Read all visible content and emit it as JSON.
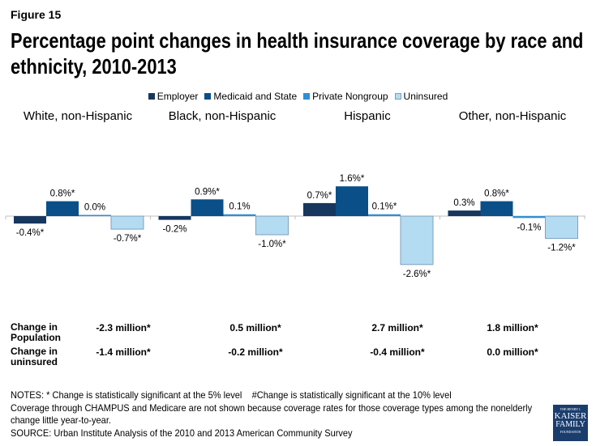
{
  "figure_label": "Figure 15",
  "chart_data": {
    "type": "bar",
    "title": "Percentage point changes in health insurance coverage by race and ethnicity, 2010-2013",
    "categories": [
      "White, non-Hispanic",
      "Black, non-Hispanic",
      "Hispanic",
      "Other, non-Hispanic"
    ],
    "series": [
      {
        "name": "Employer",
        "color": "#17375e",
        "values": [
          -0.4,
          -0.2,
          0.7,
          0.3
        ],
        "labels": [
          "-0.4%*",
          "-0.2%",
          "0.7%*",
          "0.3%"
        ]
      },
      {
        "name": "Medicaid and State",
        "color": "#0a4f88",
        "values": [
          0.8,
          0.9,
          1.6,
          0.8
        ],
        "labels": [
          "0.8%*",
          "0.9%*",
          "1.6%*",
          "0.8%*"
        ]
      },
      {
        "name": "Private Nongroup",
        "color": "#2e8fd6",
        "values": [
          0.0,
          0.1,
          0.1,
          -0.1
        ],
        "labels": [
          "0.0%",
          "0.1%",
          "0.1%*",
          "-0.1%"
        ]
      },
      {
        "name": "Uninsured",
        "color": "#b3dcf2",
        "values": [
          -0.7,
          -1.0,
          -2.6,
          -1.2
        ],
        "labels": [
          "-0.7%*",
          "-1.0%*",
          "-2.6%*",
          "-1.2%*"
        ]
      }
    ],
    "legend": "top",
    "grid": false
  },
  "table": {
    "row1_label": "Change in Population",
    "row1": [
      "-2.3 million*",
      "0.5 million*",
      "2.7 million*",
      "1.8  million*"
    ],
    "row2_label": "Change in uninsured",
    "row2": [
      "-1.4 million*",
      "-0.2 million*",
      "-0.4 million*",
      "0.0 million*"
    ]
  },
  "notes": [
    "NOTES: * Change is statistically significant at the 5% level    #Change is statistically significant at the 10% level",
    "Coverage through CHAMPUS and Medicare are not shown because coverage rates for those coverage types among the nonelderly",
    "change little year-to-year.",
    "SOURCE: Urban Institute Analysis of the 2010 and 2013 American Community Survey"
  ],
  "logo": {
    "line1": "THE HENRY J.",
    "line2": "KAISER",
    "line3": "FAMILY",
    "line4": "FOUNDATION"
  }
}
